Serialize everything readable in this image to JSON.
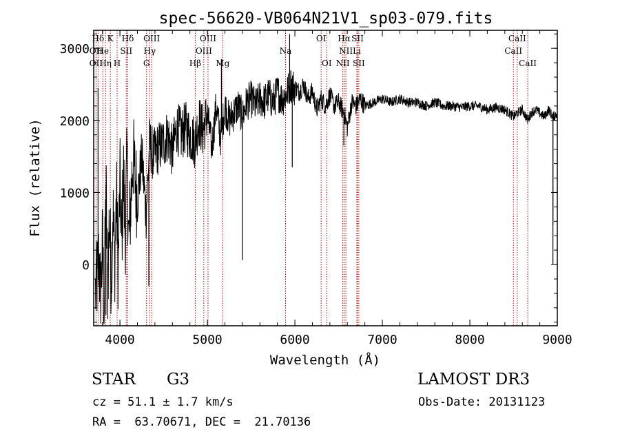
{
  "chart_data": {
    "type": "line",
    "title": "spec-56620-VB064N21V1_sp03-079.fits",
    "xlabel": "Wavelength (Å)",
    "ylabel": "Flux (relative)",
    "xlim": [
      3700,
      9000
    ],
    "ylim": [
      -850,
      3250
    ],
    "x_ticks": [
      4000,
      5000,
      6000,
      7000,
      8000,
      9000
    ],
    "y_ticks": [
      0,
      1000,
      2000,
      3000
    ],
    "series": [
      {
        "name": "flux",
        "x": [
          3720,
          3740,
          3760,
          3780,
          3800,
          3820,
          3840,
          3860,
          3880,
          3900,
          3920,
          3940,
          3960,
          3980,
          4000,
          4020,
          4040,
          4060,
          4080,
          4100,
          4150,
          4200,
          4250,
          4300,
          4340,
          4380,
          4430,
          4500,
          4550,
          4600,
          4650,
          4700,
          4750,
          4800,
          4860,
          4900,
          4950,
          5000,
          5050,
          5100,
          5150,
          5200,
          5250,
          5300,
          5350,
          5400,
          5450,
          5500,
          5550,
          5600,
          5650,
          5700,
          5750,
          5800,
          5850,
          5900,
          5950,
          6000,
          6050,
          6100,
          6150,
          6200,
          6250,
          6300,
          6350,
          6400,
          6450,
          6500,
          6563,
          6600,
          6650,
          6700,
          6750,
          6800,
          6900,
          7000,
          7100,
          7200,
          7300,
          7400,
          7500,
          7600,
          7700,
          7800,
          7900,
          8000,
          8100,
          8200,
          8300,
          8400,
          8500,
          8540,
          8600,
          8662,
          8700,
          8750,
          8800,
          8850,
          8900,
          8950,
          9000
        ],
        "values": [
          -400,
          -200,
          100,
          -500,
          300,
          -650,
          1100,
          -300,
          700,
          -200,
          800,
          0,
          1000,
          -100,
          1200,
          300,
          1300,
          400,
          1400,
          300,
          1500,
          900,
          1500,
          700,
          1700,
          1500,
          1600,
          1700,
          1800,
          1550,
          1900,
          1800,
          1900,
          1800,
          1700,
          2000,
          1850,
          2100,
          1600,
          2200,
          1750,
          2200,
          2000,
          2100,
          2200,
          2050,
          2250,
          2300,
          2200,
          2300,
          2250,
          2350,
          2250,
          2400,
          2300,
          2350,
          2500,
          2450,
          2400,
          2500,
          2300,
          2400,
          2150,
          2300,
          2200,
          2350,
          2200,
          2250,
          2100,
          1900,
          2250,
          2200,
          2300,
          2200,
          2250,
          2300,
          2250,
          2300,
          2250,
          2250,
          2200,
          2250,
          2200,
          2200,
          2180,
          2200,
          2200,
          2150,
          2180,
          2150,
          2050,
          2100,
          2150,
          2000,
          2100,
          2150,
          2100,
          2050,
          2150,
          2050,
          2100
        ]
      }
    ],
    "spike_annotations": [
      {
        "x": 3750,
        "value": 2450
      },
      {
        "x": 3840,
        "value": -700
      },
      {
        "x": 4330,
        "value": -300
      },
      {
        "x": 5160,
        "value": 2850
      },
      {
        "x": 5400,
        "value": 60
      },
      {
        "x": 5940,
        "value": 3200
      },
      {
        "x": 5970,
        "value": 1350
      },
      {
        "x": 6560,
        "value": 1650
      },
      {
        "x": 8950,
        "value": 550
      },
      {
        "x": 8950,
        "value": 0
      }
    ],
    "lines": [
      {
        "label": "Hδ",
        "x": 3750,
        "row": 0
      },
      {
        "label": "K",
        "x": 3890,
        "row": 0
      },
      {
        "label": "Hδ",
        "x": 4090,
        "row": 0
      },
      {
        "label": "OIII",
        "x": 4363,
        "row": 0
      },
      {
        "label": "OIII",
        "x": 5007,
        "row": 0
      },
      {
        "label": "OI",
        "x": 6300,
        "row": 0
      },
      {
        "label": "Hα",
        "x": 6563,
        "row": 0
      },
      {
        "label": "SII",
        "x": 6716,
        "row": 0
      },
      {
        "label": "CaII",
        "x": 8542,
        "row": 0
      },
      {
        "label": "OII",
        "x": 3727,
        "row": 1
      },
      {
        "label": "He",
        "x": 3805,
        "row": 1
      },
      {
        "label": "SII",
        "x": 4072,
        "row": 1
      },
      {
        "label": "Hγ",
        "x": 4340,
        "row": 1
      },
      {
        "label": "OIII",
        "x": 4959,
        "row": 1
      },
      {
        "label": "Na",
        "x": 5893,
        "row": 1
      },
      {
        "label": "NII",
        "x": 6583,
        "row": 1
      },
      {
        "label": "Li",
        "x": 6708,
        "row": 1
      },
      {
        "label": "CaII",
        "x": 8498,
        "row": 1
      },
      {
        "label": "OII",
        "x": 3727,
        "row": 2
      },
      {
        "label": "Hη",
        "x": 3835,
        "row": 2
      },
      {
        "label": "H",
        "x": 3968,
        "row": 2
      },
      {
        "label": "G",
        "x": 4304,
        "row": 2
      },
      {
        "label": "Hβ",
        "x": 4861,
        "row": 2
      },
      {
        "label": "Mg",
        "x": 5175,
        "row": 2
      },
      {
        "label": "OI",
        "x": 6364,
        "row": 2
      },
      {
        "label": "NII",
        "x": 6548,
        "row": 2
      },
      {
        "label": "SII",
        "x": 6731,
        "row": 2
      },
      {
        "label": "CaII",
        "x": 8662,
        "row": 2
      }
    ],
    "line_color": "#aa0000"
  },
  "info": {
    "object_class": "STAR",
    "subclass": "G3",
    "survey": "LAMOST DR3",
    "redshift": "cz = 51.1 ± 1.7 km/s",
    "obs_date": "Obs-Date: 20131123",
    "coordinates": "RA =  63.70671, DEC =  21.70136"
  }
}
